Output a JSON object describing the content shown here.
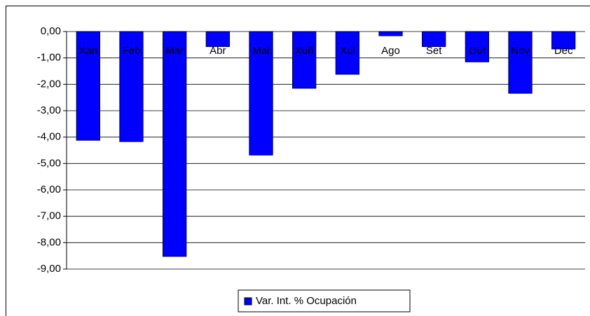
{
  "chart_data": {
    "type": "bar",
    "categories": [
      "Xan",
      "Feb",
      "Mar",
      "Abr",
      "Mai",
      "Xuñ",
      "Xul",
      "Ago",
      "Set",
      "Out",
      "Nov",
      "Dec"
    ],
    "series": [
      {
        "name": "Var. Int. % Ocupación",
        "color": "#0000ff",
        "values": [
          -4.12,
          -4.17,
          -8.52,
          -0.57,
          -4.68,
          -2.15,
          -1.62,
          -0.16,
          -0.57,
          -1.15,
          -2.34,
          -0.66
        ]
      }
    ],
    "ylim": [
      -9,
      0
    ],
    "yticks": [
      {
        "value": 0,
        "label": "0,00"
      },
      {
        "value": -1,
        "label": "-1,00"
      },
      {
        "value": -2,
        "label": "-2,00"
      },
      {
        "value": -3,
        "label": "-3,00"
      },
      {
        "value": -4,
        "label": "-4,00"
      },
      {
        "value": -5,
        "label": "-5,00"
      },
      {
        "value": -6,
        "label": "-6,00"
      },
      {
        "value": -7,
        "label": "-7,00"
      },
      {
        "value": -8,
        "label": "-8,00"
      },
      {
        "value": -9,
        "label": "-9,00"
      }
    ],
    "grid": true,
    "legend": "bottom"
  }
}
